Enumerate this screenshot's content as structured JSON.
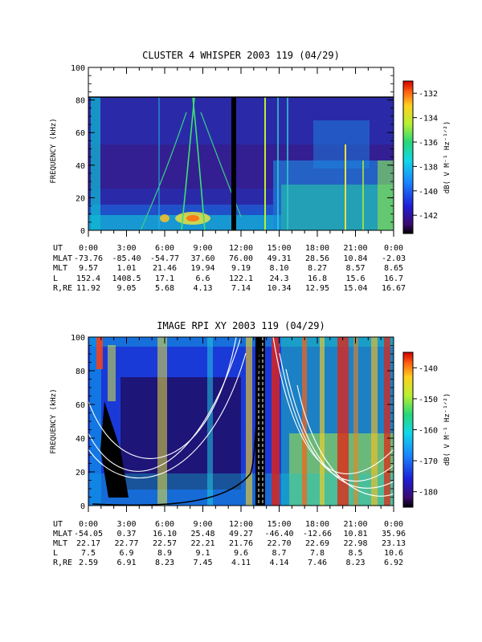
{
  "chart_data": [
    {
      "type": "heatmap",
      "title": "CLUSTER 4 WHISPER 2003 119 (04/29)",
      "ylabel": "FREQUENCY (kHz)",
      "ylim": [
        0,
        100
      ],
      "y_ticks": [
        "0",
        "20",
        "40",
        "60",
        "80",
        "100"
      ],
      "x_ticks": [
        "0:00",
        "3:00",
        "6:00",
        "9:00",
        "12:00",
        "15:00",
        "18:00",
        "21:00",
        "0:00"
      ],
      "colorbar": {
        "label": "dB( V M⁻¹ Hz⁻¹ᐟ²)",
        "range": [
          -143.5,
          -131
        ],
        "ticks": [
          "-132",
          "-134",
          "-136",
          "-138",
          "-140",
          "-142"
        ]
      },
      "ephemeris": [
        {
          "label": "UT",
          "values": [
            "0:00",
            "3:00",
            "6:00",
            "9:00",
            "12:00",
            "15:00",
            "18:00",
            "21:00",
            "0:00"
          ]
        },
        {
          "label": "MLAT",
          "values": [
            "-73.76",
            "-85.40",
            "-54.77",
            "37.60",
            "76.00",
            "49.31",
            "28.56",
            "10.84",
            "-2.03"
          ]
        },
        {
          "label": "MLT",
          "values": [
            "9.57",
            "1.01",
            "21.46",
            "19.94",
            "9.19",
            "8.10",
            "8.27",
            "8.57",
            "8.65"
          ]
        },
        {
          "label": "L",
          "values": [
            "152.4",
            "1408.5",
            "17.1",
            "6.6",
            "122.1",
            "24.3",
            "16.8",
            "15.6",
            "16.7"
          ]
        },
        {
          "label": "R,RE",
          "values": [
            "11.92",
            "9.05",
            "5.68",
            "4.13",
            "7.14",
            "10.34",
            "12.95",
            "15.04",
            "16.67"
          ]
        }
      ]
    },
    {
      "type": "heatmap",
      "title": "IMAGE RPI XY 2003 119 (04/29)",
      "ylabel": "FREQUENCY (kHz)",
      "ylim": [
        0,
        100
      ],
      "y_ticks": [
        "0",
        "20",
        "40",
        "60",
        "80",
        "100"
      ],
      "x_ticks": [
        "0:00",
        "3:00",
        "6:00",
        "9:00",
        "12:00",
        "15:00",
        "18:00",
        "21:00",
        "0:00"
      ],
      "colorbar": {
        "label": "dB( V M⁻¹ Hz⁻¹ᐟ²)",
        "range": [
          -185,
          -135
        ],
        "ticks": [
          "-140",
          "-150",
          "-160",
          "-170",
          "-180"
        ]
      },
      "ephemeris": [
        {
          "label": "UT",
          "values": [
            "0:00",
            "3:00",
            "6:00",
            "9:00",
            "12:00",
            "15:00",
            "18:00",
            "21:00",
            "0:00"
          ]
        },
        {
          "label": "MLAT",
          "values": [
            "-54.05",
            "0.37",
            "16.10",
            "25.48",
            "49.27",
            "-46.40",
            "-12.66",
            "10.81",
            "35.96"
          ]
        },
        {
          "label": "MLT",
          "values": [
            "22.17",
            "22.77",
            "22.57",
            "22.21",
            "21.76",
            "22.70",
            "22.69",
            "22.98",
            "23.13"
          ]
        },
        {
          "label": "L",
          "values": [
            "7.5",
            "6.9",
            "8.9",
            "9.1",
            "9.6",
            "8.7",
            "7.8",
            "8.5",
            "10.6"
          ]
        },
        {
          "label": "R,RE",
          "values": [
            "2.59",
            "6.91",
            "8.23",
            "7.45",
            "4.11",
            "4.14",
            "7.46",
            "8.23",
            "6.92"
          ]
        }
      ]
    }
  ]
}
